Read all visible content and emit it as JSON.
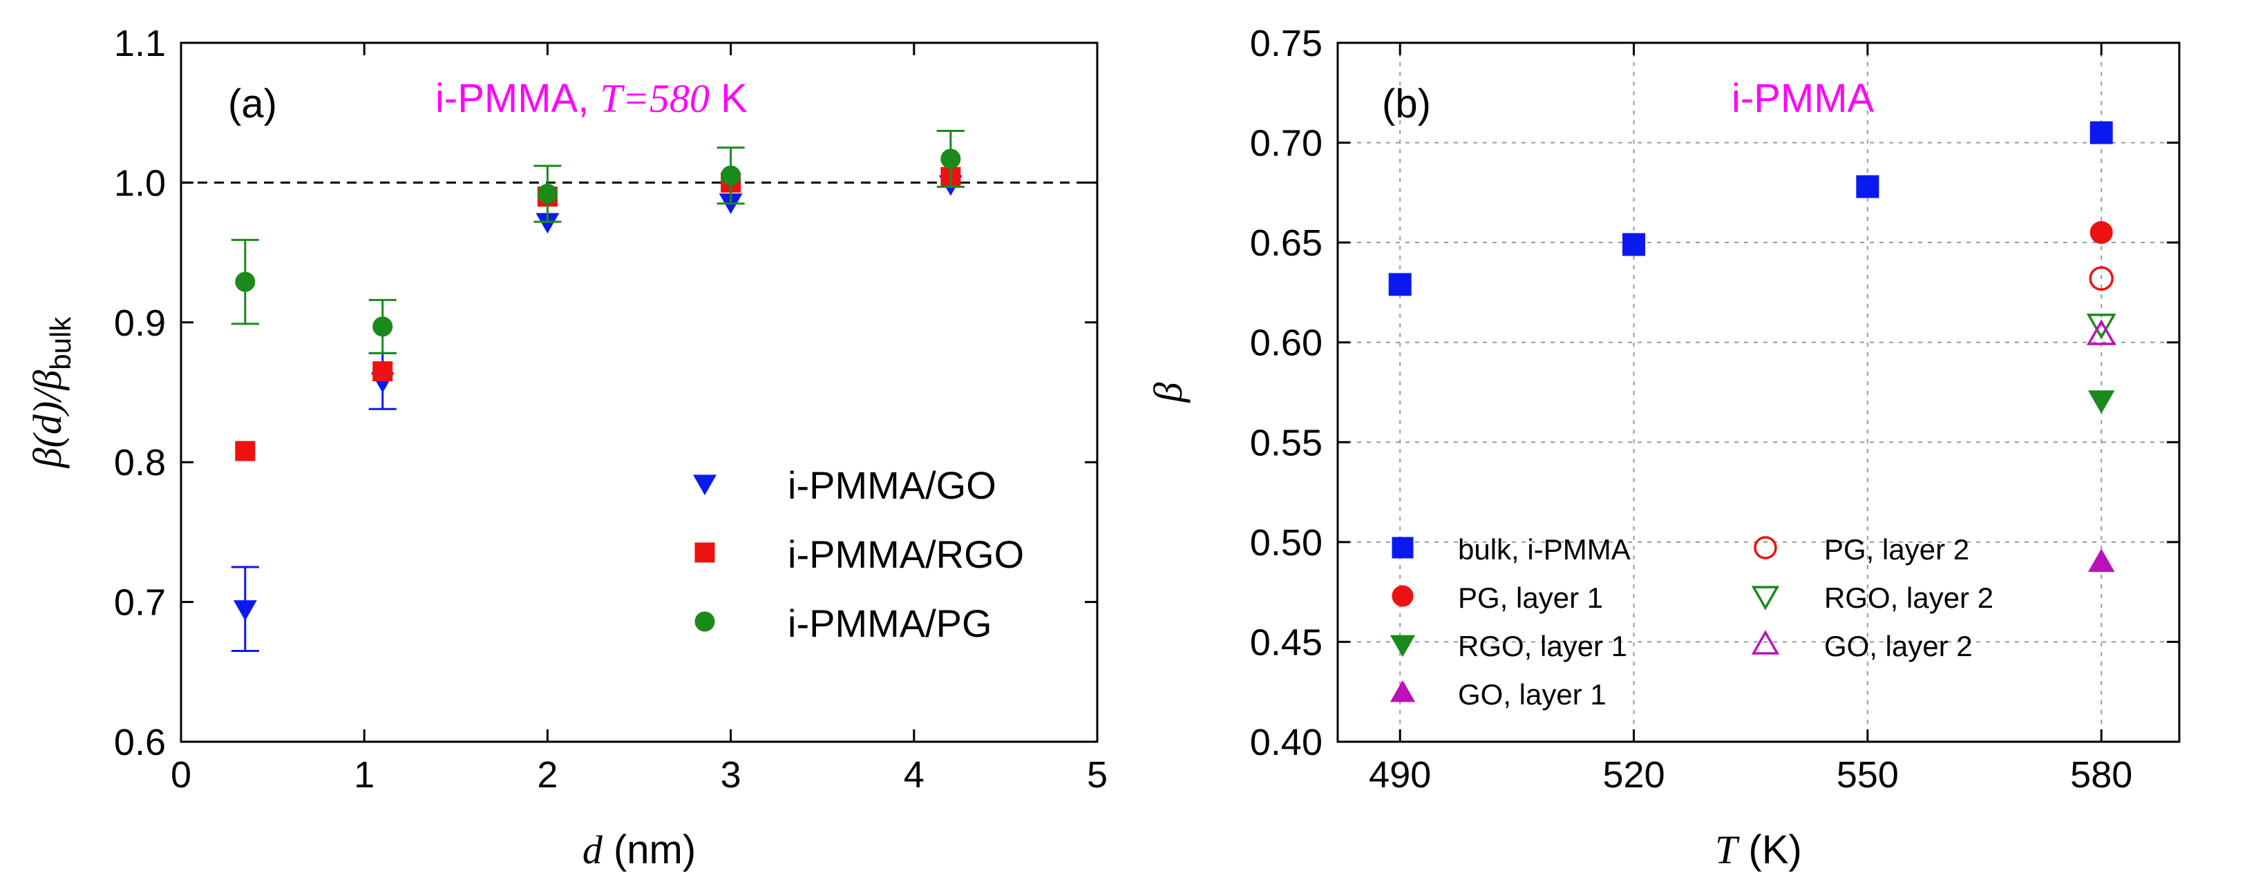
{
  "colors": {
    "blue": "#0a1aee",
    "red": "#ee1111",
    "green": "#1a8a1a",
    "magenta": "#bb11bb",
    "title": "#ff00ff"
  },
  "chart_data": [
    {
      "type": "scatter",
      "panel_label": "(a)",
      "title_prefix": "i-PMMA, ",
      "title_var": "T",
      "title_eq": "=",
      "title_val": "580",
      "title_unit": " K",
      "xlabel_var": "d",
      "xlabel_unit": " (nm)",
      "ylabel_main": "β(d)/β",
      "ylabel_sub": "bulk",
      "xlim": [
        0,
        5
      ],
      "ylim": [
        0.6,
        1.1
      ],
      "xticks": [
        0,
        1,
        2,
        3,
        4,
        5
      ],
      "xtick_labels": [
        "0",
        "1",
        "2",
        "3",
        "4",
        "5"
      ],
      "yticks": [
        0.6,
        0.7,
        0.8,
        0.9,
        1.0,
        1.1
      ],
      "ytick_labels": [
        "0.6",
        "0.7",
        "0.8",
        "0.9",
        "1.0",
        "1.1"
      ],
      "reference_line_y": 1.0,
      "legend_position": "lower-right",
      "series": [
        {
          "name": "i-PMMA/GO",
          "marker": "triangle-down",
          "color": "#0a1aee",
          "x": [
            0.35,
            1.1,
            2.0,
            3.0,
            4.2
          ],
          "y": [
            0.695,
            0.858,
            0.972,
            0.986,
            0.999
          ],
          "yerr": [
            0.03,
            0.02,
            0.0,
            0.0,
            0.0
          ]
        },
        {
          "name": "i-PMMA/RGO",
          "marker": "square",
          "color": "#ee1111",
          "x": [
            0.35,
            1.1,
            2.0,
            3.0,
            4.2
          ],
          "y": [
            0.808,
            0.865,
            0.99,
            1.0,
            1.004
          ],
          "yerr": [
            0,
            0,
            0,
            0,
            0
          ]
        },
        {
          "name": "i-PMMA/PG",
          "marker": "circle",
          "color": "#1a8a1a",
          "x": [
            0.35,
            1.1,
            2.0,
            3.0,
            4.2
          ],
          "y": [
            0.929,
            0.897,
            0.992,
            1.005,
            1.017
          ],
          "yerr": [
            0.03,
            0.019,
            0.02,
            0.02,
            0.02
          ]
        }
      ]
    },
    {
      "type": "scatter",
      "panel_label": "(b)",
      "title": "i-PMMA",
      "xlabel_var": "T",
      "xlabel_unit": " (K)",
      "ylabel": "β",
      "xlim": [
        482,
        590
      ],
      "ylim": [
        0.4,
        0.75
      ],
      "xticks": [
        490,
        520,
        550,
        580
      ],
      "xtick_labels": [
        "490",
        "520",
        "550",
        "580"
      ],
      "yticks": [
        0.4,
        0.45,
        0.5,
        0.55,
        0.6,
        0.65,
        0.7,
        0.75
      ],
      "ytick_labels": [
        "0.40",
        "0.45",
        "0.50",
        "0.55",
        "0.60",
        "0.65",
        "0.70",
        "0.75"
      ],
      "grid": true,
      "legend_position": "lower-left",
      "series": [
        {
          "name": "bulk, i-PMMA",
          "marker": "square",
          "filled": true,
          "color": "#0a1aee",
          "x": [
            490,
            520,
            550,
            580
          ],
          "y": [
            0.629,
            0.649,
            0.678,
            0.705
          ]
        },
        {
          "name": "PG, layer 1",
          "marker": "circle",
          "filled": true,
          "color": "#ee1111",
          "x": [
            580
          ],
          "y": [
            0.655
          ]
        },
        {
          "name": "RGO, layer 1",
          "marker": "triangle-down",
          "filled": true,
          "color": "#1a8a1a",
          "x": [
            580
          ],
          "y": [
            0.571
          ]
        },
        {
          "name": "GO, layer 1",
          "marker": "triangle-up",
          "filled": true,
          "color": "#bb11bb",
          "x": [
            580
          ],
          "y": [
            0.49
          ]
        },
        {
          "name": "PG, layer 2",
          "marker": "circle",
          "filled": false,
          "color": "#ee1111",
          "x": [
            580
          ],
          "y": [
            0.632
          ]
        },
        {
          "name": "RGO, layer 2",
          "marker": "triangle-down",
          "filled": false,
          "color": "#1a8a1a",
          "x": [
            580
          ],
          "y": [
            0.609
          ]
        },
        {
          "name": "GO, layer 2",
          "marker": "triangle-up",
          "filled": false,
          "color": "#bb11bb",
          "x": [
            580
          ],
          "y": [
            0.604
          ]
        }
      ]
    }
  ]
}
